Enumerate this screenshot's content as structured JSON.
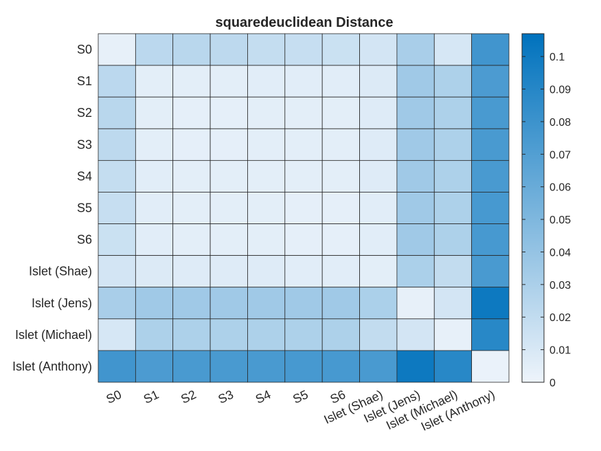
{
  "chart_data": {
    "type": "heatmap",
    "title": "squaredeuclidean Distance",
    "row_labels": [
      "S0",
      "S1",
      "S2",
      "S3",
      "S4",
      "S5",
      "S6",
      "Islet (Shae)",
      "Islet (Jens)",
      "Islet (Michael)",
      "Islet (Anthony)"
    ],
    "col_labels": [
      "S0",
      "S1",
      "S2",
      "S3",
      "S4",
      "S5",
      "S6",
      "Islet (Shae)",
      "Islet (Jens)",
      "Islet (Michael)",
      "Islet (Anthony)"
    ],
    "values": [
      [
        0.003,
        0.023,
        0.024,
        0.022,
        0.019,
        0.018,
        0.016,
        0.012,
        0.031,
        0.011,
        0.078
      ],
      [
        0.023,
        0.005,
        0.005,
        0.005,
        0.006,
        0.006,
        0.006,
        0.008,
        0.035,
        0.029,
        0.073
      ],
      [
        0.024,
        0.005,
        0.004,
        0.004,
        0.005,
        0.005,
        0.005,
        0.007,
        0.035,
        0.029,
        0.074
      ],
      [
        0.022,
        0.005,
        0.004,
        0.004,
        0.005,
        0.005,
        0.005,
        0.007,
        0.035,
        0.029,
        0.074
      ],
      [
        0.019,
        0.006,
        0.005,
        0.005,
        0.005,
        0.005,
        0.005,
        0.007,
        0.035,
        0.029,
        0.074
      ],
      [
        0.018,
        0.006,
        0.005,
        0.005,
        0.005,
        0.004,
        0.004,
        0.006,
        0.035,
        0.029,
        0.075
      ],
      [
        0.016,
        0.006,
        0.005,
        0.005,
        0.005,
        0.004,
        0.004,
        0.006,
        0.035,
        0.029,
        0.075
      ],
      [
        0.012,
        0.008,
        0.007,
        0.007,
        0.007,
        0.006,
        0.006,
        0.005,
        0.03,
        0.02,
        0.074
      ],
      [
        0.031,
        0.035,
        0.035,
        0.035,
        0.035,
        0.035,
        0.035,
        0.03,
        0.003,
        0.012,
        0.101
      ],
      [
        0.011,
        0.029,
        0.029,
        0.029,
        0.029,
        0.029,
        0.029,
        0.02,
        0.012,
        0.003,
        0.089
      ],
      [
        0.078,
        0.073,
        0.074,
        0.074,
        0.074,
        0.075,
        0.075,
        0.074,
        0.101,
        0.089,
        0.002
      ]
    ],
    "colorbar": {
      "range": [
        0,
        0.107
      ],
      "ticks": [
        0,
        0.01,
        0.02,
        0.03,
        0.04,
        0.05,
        0.06,
        0.07,
        0.08,
        0.09,
        0.1
      ],
      "tick_labels": [
        "0",
        "0.01",
        "0.02",
        "0.03",
        "0.04",
        "0.05",
        "0.06",
        "0.07",
        "0.08",
        "0.09",
        "0.1"
      ],
      "colormap": "light-to-dark blue",
      "color_low": "#eef4fb",
      "color_high": "#0072bd"
    },
    "grid": true,
    "xtick_rotation": "angled"
  }
}
